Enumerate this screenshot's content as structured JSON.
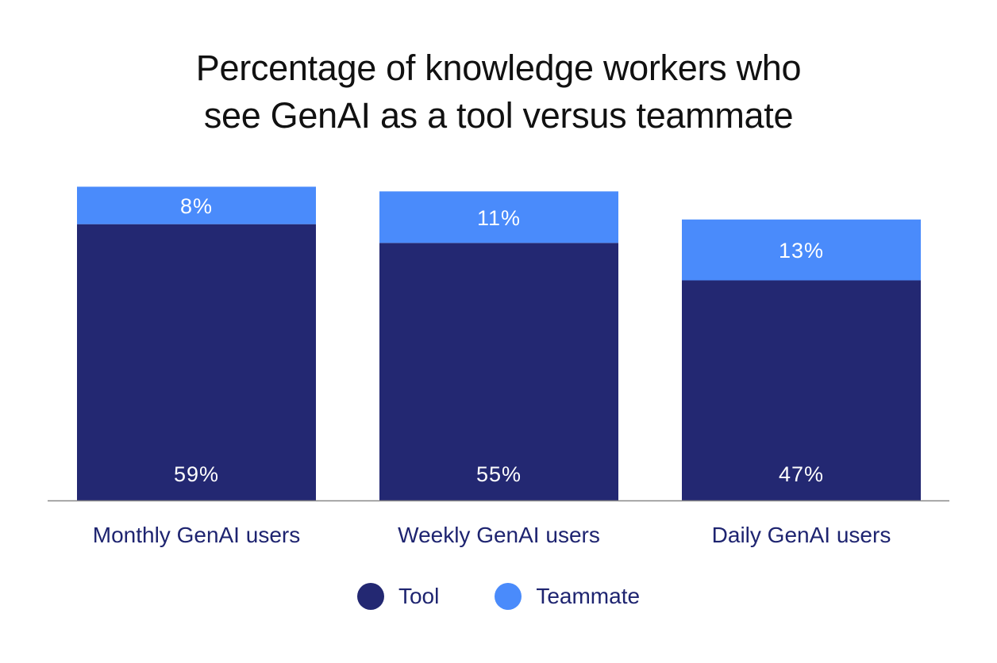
{
  "chart_data": {
    "type": "bar",
    "stacked": true,
    "title": [
      "Percentage of knowledge workers who",
      "see GenAI as a tool versus teammate"
    ],
    "categories": [
      "Monthly GenAI users",
      "Weekly GenAI users",
      "Daily GenAI users"
    ],
    "series": [
      {
        "name": "Tool",
        "values": [
          59,
          55,
          47
        ],
        "labels": [
          "59%",
          "55%",
          "47%"
        ],
        "color": "#232872"
      },
      {
        "name": "Teammate",
        "values": [
          8,
          11,
          13
        ],
        "labels": [
          "8%",
          "11%",
          "13%"
        ],
        "color": "#4a8bfb"
      }
    ],
    "ylim": [
      0,
      70
    ],
    "grid": false,
    "legend_position": "bottom-center",
    "colors": {
      "axis": "#888888",
      "category_text": "#1e2470",
      "label_text": "#ffffff",
      "title_text": "#111111"
    }
  }
}
